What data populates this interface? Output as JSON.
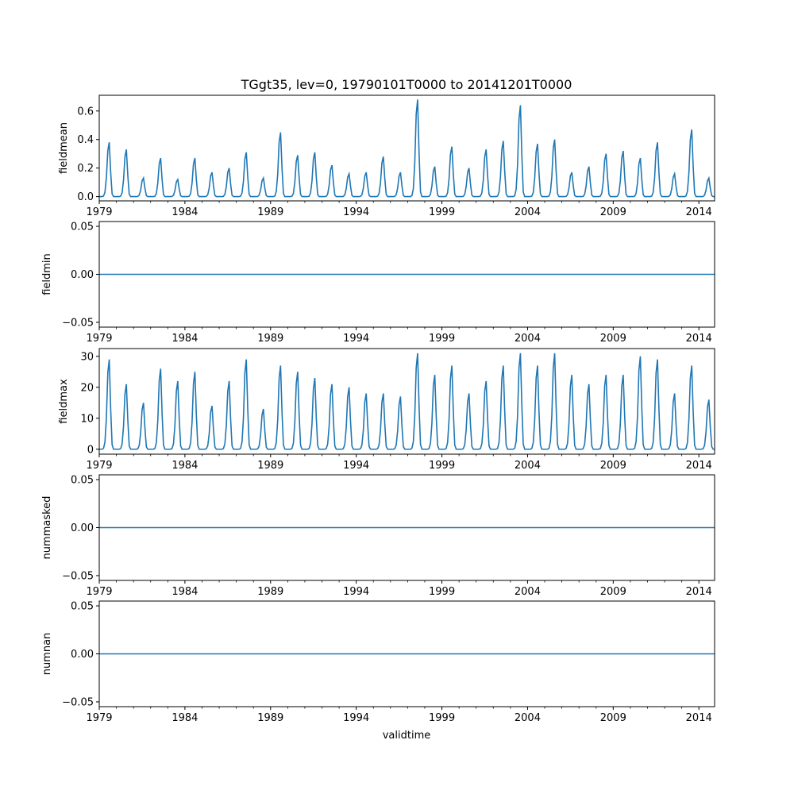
{
  "figure": {
    "title": "TGgt35, lev=0, 19790101T0000 to 20141201T0000",
    "xlabel": "validtime",
    "line_color": "#1f77b4"
  },
  "chart_data": [
    {
      "type": "line",
      "ylabel": "fieldmean",
      "xlim": [
        1979.0,
        2014.917
      ],
      "ylim": [
        -0.03,
        0.71
      ],
      "yticks": [
        0.0,
        0.2,
        0.4,
        0.6
      ],
      "ytick_labels": [
        "0.0",
        "0.2",
        "0.4",
        "0.6"
      ],
      "xticks": [
        1979,
        1984,
        1989,
        1994,
        1999,
        2004,
        2009,
        2014
      ],
      "xtick_labels": [
        "1979",
        "1984",
        "1989",
        "1994",
        "1999",
        "2004",
        "2009",
        "2014"
      ],
      "summer_peaks": [
        0.38,
        0.33,
        0.13,
        0.27,
        0.12,
        0.27,
        0.17,
        0.2,
        0.31,
        0.13,
        0.45,
        0.29,
        0.31,
        0.22,
        0.16,
        0.17,
        0.28,
        0.17,
        0.68,
        0.21,
        0.35,
        0.2,
        0.33,
        0.39,
        0.64,
        0.37,
        0.4,
        0.17,
        0.21,
        0.3,
        0.32,
        0.27,
        0.38,
        0.16,
        0.47,
        0.13
      ],
      "winter_value": 0.0
    },
    {
      "type": "line",
      "ylabel": "fieldmin",
      "xlim": [
        1979.0,
        2014.917
      ],
      "ylim": [
        -0.055,
        0.055
      ],
      "yticks": [
        -0.05,
        0.0,
        0.05
      ],
      "ytick_labels": [
        "−0.05",
        "0.00",
        "0.05"
      ],
      "xticks": [
        1979,
        1984,
        1989,
        1994,
        1999,
        2004,
        2009,
        2014
      ],
      "xtick_labels": [
        "1979",
        "1984",
        "1989",
        "1994",
        "1999",
        "2004",
        "2009",
        "2014"
      ],
      "constant_value": 0.0
    },
    {
      "type": "line",
      "ylabel": "fieldmax",
      "xlim": [
        1979.0,
        2014.917
      ],
      "ylim": [
        -1.6,
        32.5
      ],
      "yticks": [
        0,
        10,
        20,
        30
      ],
      "ytick_labels": [
        "0",
        "10",
        "20",
        "30"
      ],
      "xticks": [
        1979,
        1984,
        1989,
        1994,
        1999,
        2004,
        2009,
        2014
      ],
      "xtick_labels": [
        "1979",
        "1984",
        "1989",
        "1994",
        "1999",
        "2004",
        "2009",
        "2014"
      ],
      "summer_peaks": [
        29,
        21,
        15,
        26,
        22,
        25,
        14,
        22,
        29,
        13,
        27,
        25,
        23,
        21,
        20,
        18,
        18,
        17,
        31,
        24,
        27,
        18,
        22,
        27,
        31,
        27,
        31,
        24,
        21,
        24,
        24,
        30,
        29,
        18,
        27,
        16
      ],
      "winter_value": 0.0
    },
    {
      "type": "line",
      "ylabel": "nummasked",
      "xlim": [
        1979.0,
        2014.917
      ],
      "ylim": [
        -0.055,
        0.055
      ],
      "yticks": [
        -0.05,
        0.0,
        0.05
      ],
      "ytick_labels": [
        "−0.05",
        "0.00",
        "0.05"
      ],
      "xticks": [
        1979,
        1984,
        1989,
        1994,
        1999,
        2004,
        2009,
        2014
      ],
      "xtick_labels": [
        "1979",
        "1984",
        "1989",
        "1994",
        "1999",
        "2004",
        "2009",
        "2014"
      ],
      "constant_value": 0.0
    },
    {
      "type": "line",
      "ylabel": "numnan",
      "xlim": [
        1979.0,
        2014.917
      ],
      "ylim": [
        -0.055,
        0.055
      ],
      "yticks": [
        -0.05,
        0.0,
        0.05
      ],
      "ytick_labels": [
        "−0.05",
        "0.00",
        "0.05"
      ],
      "xticks": [
        1979,
        1984,
        1989,
        1994,
        1999,
        2004,
        2009,
        2014
      ],
      "xtick_labels": [
        "1979",
        "1984",
        "1989",
        "1994",
        "1999",
        "2004",
        "2009",
        "2014"
      ],
      "constant_value": 0.0
    }
  ]
}
